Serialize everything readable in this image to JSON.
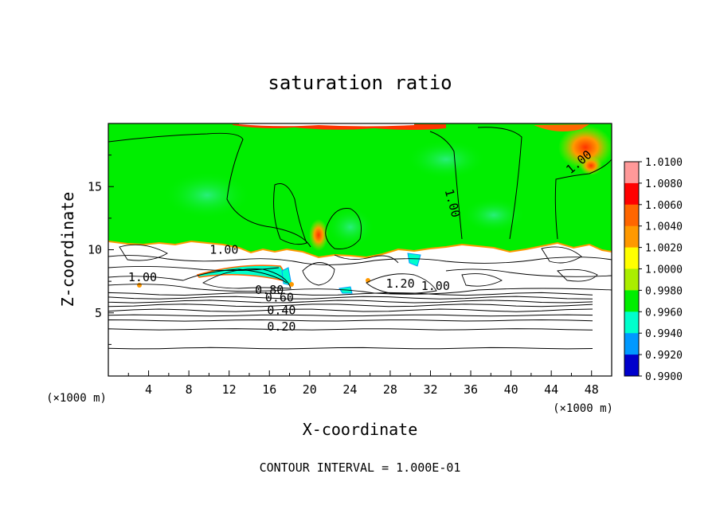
{
  "chart_data": {
    "type": "heatmap",
    "title": "saturation ratio",
    "xlabel": "X-coordinate",
    "ylabel": "Z-coordinate",
    "x_unit": "(×1000 m)",
    "z_unit": "(×1000 m)",
    "xlim": [
      0,
      50
    ],
    "ylim": [
      0,
      20
    ],
    "x_ticks": [
      4,
      8,
      12,
      16,
      20,
      24,
      28,
      32,
      36,
      40,
      44,
      48
    ],
    "y_ticks": [
      5,
      10,
      15
    ],
    "footer": "CONTOUR INTERVAL = 1.000E-01",
    "colorbar": {
      "levels": [
        "1.0100",
        "1.0080",
        "1.0060",
        "1.0040",
        "1.0020",
        "1.0000",
        "0.9980",
        "0.9960",
        "0.9940",
        "0.9920",
        "0.9900"
      ],
      "colors": [
        "#ff9999",
        "#ff0000",
        "#ff6600",
        "#ff9900",
        "#ffff00",
        "#aaee00",
        "#00ee00",
        "#00ffcc",
        "#0099ff",
        "#0000cc",
        "#660099"
      ]
    },
    "contour_labels": [
      {
        "text": "1.00",
        "x": 11.5,
        "z": 9.7
      },
      {
        "text": "1.00",
        "x": 3.4,
        "z": 7.5
      },
      {
        "text": "0.80",
        "x": 16.0,
        "z": 6.5
      },
      {
        "text": "0.60",
        "x": 17.0,
        "z": 5.9
      },
      {
        "text": "0.40",
        "x": 17.2,
        "z": 4.9
      },
      {
        "text": "0.20",
        "x": 17.2,
        "z": 3.6
      },
      {
        "text": "1.20",
        "x": 29.0,
        "z": 7.0
      },
      {
        "text": "1.00",
        "x": 32.5,
        "z": 6.8
      },
      {
        "text": "1.00",
        "x": 33.8,
        "z": 13.6
      },
      {
        "text": "1.00",
        "x": 47.0,
        "z": 16.7
      }
    ],
    "stable_layer_contours_z": [
      6.5,
      6.2,
      5.9,
      5.6,
      5.2,
      4.8,
      4.4,
      3.7,
      2.2
    ]
  }
}
